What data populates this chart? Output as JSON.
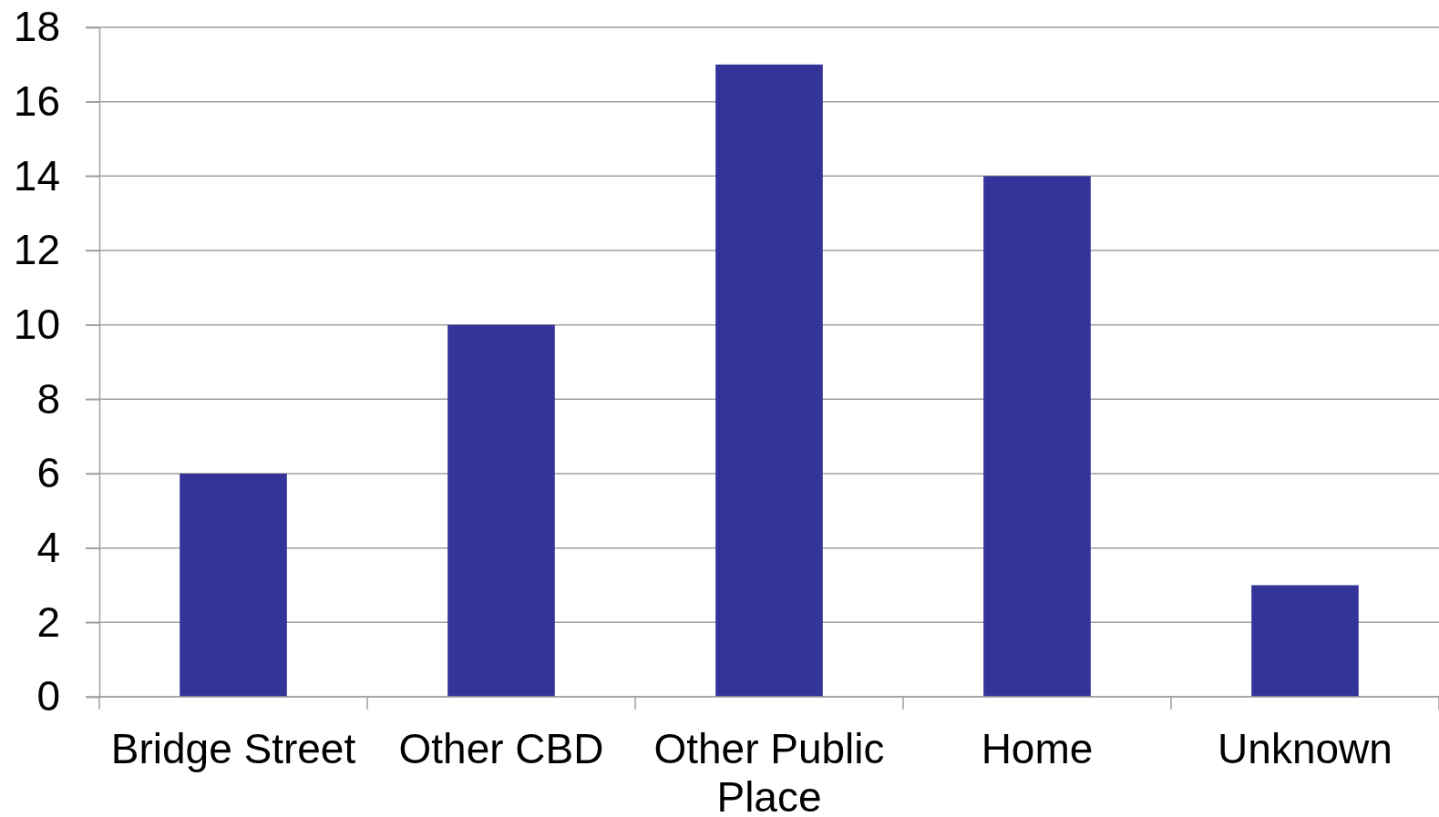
{
  "chart_data": {
    "type": "bar",
    "categories": [
      "Bridge Street",
      "Other CBD",
      "Other Public Place",
      "Home",
      "Unknown"
    ],
    "values": [
      6,
      10,
      17,
      14,
      3
    ],
    "color": "#333399",
    "ylim": [
      0,
      18
    ],
    "yticks": [
      0,
      2,
      4,
      6,
      8,
      10,
      12,
      14,
      16,
      18
    ],
    "grid": "y"
  }
}
